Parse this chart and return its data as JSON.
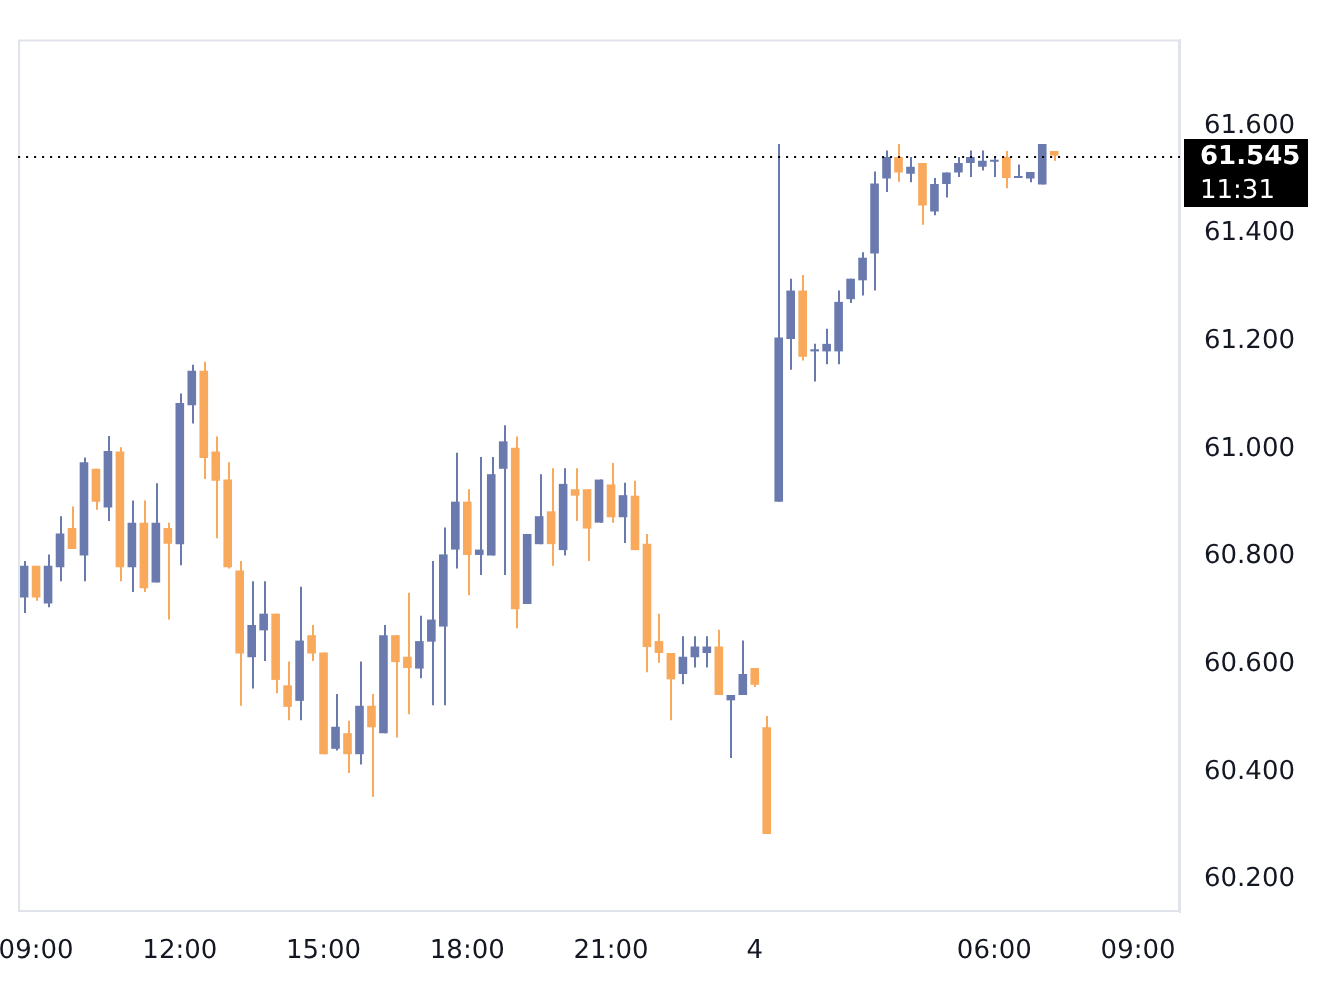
{
  "chart_data": {
    "type": "candlestick",
    "categories": [
      null,
      "09:00",
      null,
      null,
      null,
      null,
      null,
      null,
      null,
      null,
      null,
      null,
      null,
      "12:00",
      null,
      null,
      null,
      null,
      null,
      null,
      null,
      null,
      null,
      null,
      null,
      "15:00",
      null,
      null,
      null,
      null,
      null,
      null,
      null,
      null,
      null,
      null,
      null,
      "18:00",
      null,
      null,
      null,
      null,
      null,
      null,
      null,
      null,
      null,
      null,
      null,
      "21:00",
      null,
      null,
      null,
      null,
      null,
      null,
      null,
      null,
      null,
      null,
      null,
      "4",
      null,
      null,
      null,
      null,
      null,
      null,
      null,
      null,
      null,
      null,
      null,
      null,
      null,
      null,
      null,
      null,
      null,
      null,
      null,
      "06:00",
      null,
      null,
      null,
      null,
      null,
      null,
      null,
      null,
      null,
      null,
      null,
      "09:00",
      null,
      null,
      null
    ],
    "ohlc": [
      [
        60.724,
        60.792,
        60.695,
        60.783
      ],
      [
        60.783,
        60.783,
        60.718,
        60.724
      ],
      [
        60.713,
        60.804,
        60.706,
        60.783
      ],
      [
        60.78,
        60.875,
        60.754,
        60.843
      ],
      [
        60.853,
        60.893,
        60.814,
        60.814
      ],
      [
        60.802,
        60.984,
        60.754,
        60.975
      ],
      [
        60.963,
        60.963,
        60.887,
        60.902
      ],
      [
        60.891,
        61.024,
        60.866,
        60.996
      ],
      [
        60.995,
        61.003,
        60.754,
        60.78
      ],
      [
        60.78,
        60.904,
        60.734,
        60.863
      ],
      [
        60.863,
        60.904,
        60.734,
        60.741
      ],
      [
        60.752,
        60.936,
        60.752,
        60.863
      ],
      [
        60.853,
        60.863,
        60.683,
        60.824
      ],
      [
        60.823,
        61.103,
        60.784,
        61.085
      ],
      [
        61.081,
        61.156,
        61.047,
        61.145
      ],
      [
        61.145,
        61.162,
        60.944,
        60.983
      ],
      [
        60.995,
        61.023,
        60.834,
        60.941
      ],
      [
        60.943,
        60.975,
        60.778,
        60.78
      ],
      [
        60.774,
        60.792,
        60.523,
        60.62
      ],
      [
        60.613,
        60.754,
        60.555,
        60.673
      ],
      [
        60.663,
        60.754,
        60.606,
        60.694
      ],
      [
        60.694,
        60.694,
        60.546,
        60.571
      ],
      [
        60.561,
        60.605,
        60.496,
        60.521
      ],
      [
        60.532,
        60.744,
        60.496,
        60.644
      ],
      [
        60.654,
        60.673,
        60.606,
        60.62
      ],
      [
        60.622,
        60.622,
        60.433,
        60.433
      ],
      [
        60.443,
        60.545,
        60.44,
        60.484
      ],
      [
        60.472,
        60.495,
        60.398,
        60.433
      ],
      [
        60.433,
        60.605,
        60.414,
        60.523
      ],
      [
        60.523,
        60.545,
        60.354,
        60.483
      ],
      [
        60.472,
        60.673,
        60.472,
        60.654
      ],
      [
        60.654,
        60.654,
        60.464,
        60.604
      ],
      [
        60.614,
        60.733,
        60.507,
        60.593
      ],
      [
        60.592,
        60.69,
        60.574,
        60.643
      ],
      [
        60.642,
        60.792,
        60.524,
        60.683
      ],
      [
        60.67,
        60.854,
        60.524,
        60.804
      ],
      [
        60.813,
        60.993,
        60.778,
        60.902
      ],
      [
        60.902,
        60.925,
        60.728,
        60.803
      ],
      [
        60.803,
        60.985,
        60.766,
        60.813
      ],
      [
        60.802,
        60.985,
        60.802,
        60.953
      ],
      [
        60.963,
        61.044,
        60.766,
        61.014
      ],
      [
        61.002,
        61.023,
        60.667,
        60.702
      ],
      [
        60.712,
        60.842,
        60.712,
        60.842
      ],
      [
        60.823,
        60.953,
        60.823,
        60.875
      ],
      [
        60.884,
        60.964,
        60.783,
        60.823
      ],
      [
        60.812,
        60.964,
        60.802,
        60.935
      ],
      [
        60.925,
        60.964,
        60.866,
        60.913
      ],
      [
        60.925,
        60.925,
        60.792,
        60.852
      ],
      [
        60.863,
        60.943,
        60.863,
        60.943
      ],
      [
        60.934,
        60.974,
        60.863,
        60.873
      ],
      [
        60.873,
        60.937,
        60.825,
        60.914
      ],
      [
        60.913,
        60.941,
        60.812,
        60.812
      ],
      [
        60.824,
        60.842,
        60.585,
        60.632
      ],
      [
        60.643,
        60.694,
        60.603,
        60.621
      ],
      [
        60.621,
        60.621,
        60.496,
        60.572
      ],
      [
        60.582,
        60.652,
        60.563,
        60.614
      ],
      [
        60.613,
        60.652,
        60.594,
        60.633
      ],
      [
        60.621,
        60.652,
        60.594,
        60.633
      ],
      [
        60.633,
        60.664,
        60.543,
        60.543
      ],
      [
        60.533,
        60.543,
        60.426,
        60.543
      ],
      [
        60.543,
        60.644,
        60.543,
        60.582
      ],
      [
        60.593,
        60.593,
        60.558,
        60.562
      ],
      [
        60.483,
        60.504,
        60.285,
        60.285
      ],
      [
        60.902,
        61.566,
        60.902,
        61.207
      ],
      [
        61.204,
        61.316,
        61.147,
        61.294
      ],
      [
        61.294,
        61.323,
        61.164,
        61.171
      ],
      [
        61.181,
        61.195,
        61.125,
        61.185
      ],
      [
        61.181,
        61.223,
        61.157,
        61.195
      ],
      [
        61.181,
        61.294,
        61.157,
        61.273
      ],
      [
        61.278,
        61.316,
        61.271,
        61.316
      ],
      [
        61.313,
        61.365,
        61.285,
        61.355
      ],
      [
        61.363,
        61.515,
        61.294,
        61.493
      ],
      [
        61.502,
        61.554,
        61.477,
        61.542
      ],
      [
        61.542,
        61.566,
        61.496,
        61.513
      ],
      [
        61.511,
        61.542,
        61.495,
        61.524
      ],
      [
        61.531,
        61.531,
        61.416,
        61.452
      ],
      [
        61.441,
        61.503,
        61.434,
        61.492
      ],
      [
        61.492,
        61.513,
        61.467,
        61.513
      ],
      [
        61.513,
        61.542,
        61.505,
        61.531
      ],
      [
        61.531,
        61.554,
        61.505,
        61.542
      ],
      [
        61.524,
        61.554,
        61.517,
        61.535
      ],
      [
        61.533,
        61.543,
        61.505,
        61.535
      ],
      [
        61.542,
        61.553,
        61.484,
        61.503
      ],
      [
        61.503,
        61.528,
        61.503,
        61.506
      ],
      [
        61.502,
        61.514,
        61.495,
        61.514
      ],
      [
        61.491,
        61.566,
        61.491,
        61.566
      ],
      [
        61.553,
        61.553,
        61.535,
        61.545
      ],
      null,
      null,
      null,
      null,
      null,
      null,
      null,
      null,
      null,
      null
    ],
    "colors": [
      "#6a7aae",
      "#f8a95c",
      "#6a7aae",
      "#6a7aae",
      "#f8a95c",
      "#6a7aae",
      "#f8a95c",
      "#6a7aae",
      "#f8a95c",
      "#6a7aae",
      "#f8a95c",
      "#6a7aae",
      "#f8a95c",
      "#6a7aae",
      "#6a7aae",
      "#f8a95c",
      "#f8a95c",
      "#f8a95c",
      "#f8a95c",
      "#6a7aae",
      "#6a7aae",
      "#f8a95c",
      "#f8a95c",
      "#6a7aae",
      "#f8a95c",
      "#f8a95c",
      "#6a7aae",
      "#f8a95c",
      "#6a7aae",
      "#f8a95c",
      "#6a7aae",
      "#f8a95c",
      "#f8a95c",
      "#6a7aae",
      "#6a7aae",
      "#6a7aae",
      "#6a7aae",
      "#f8a95c",
      "#6a7aae",
      "#6a7aae",
      "#6a7aae",
      "#f8a95c",
      "#6a7aae",
      "#6a7aae",
      "#f8a95c",
      "#6a7aae",
      "#f8a95c",
      "#f8a95c",
      "#6a7aae",
      "#f8a95c",
      "#6a7aae",
      "#f8a95c",
      "#f8a95c",
      "#f8a95c",
      "#f8a95c",
      "#6a7aae",
      "#6a7aae",
      "#6a7aae",
      "#f8a95c",
      "#6a7aae",
      "#6a7aae",
      "#f8a95c",
      "#f8a95c",
      "#6a7aae",
      "#6a7aae",
      "#f8a95c",
      "#6a7aae",
      "#6a7aae",
      "#6a7aae",
      "#6a7aae",
      "#6a7aae",
      "#6a7aae",
      "#6a7aae",
      "#f8a95c",
      "#6a7aae",
      "#f8a95c",
      "#6a7aae",
      "#6a7aae",
      "#6a7aae",
      "#6a7aae",
      "#6a7aae",
      "#6a7aae",
      "#f8a95c",
      "#6a7aae",
      "#6a7aae",
      "#6a7aae",
      "#f8a95c",
      null,
      null,
      null,
      null,
      null,
      null,
      null,
      null,
      null,
      null
    ],
    "ylim": [
      60.14,
      61.76
    ],
    "yticks": [
      {
        "value": 60.2,
        "label": "60.200"
      },
      {
        "value": 60.4,
        "label": "60.400"
      },
      {
        "value": 60.6,
        "label": "60.600"
      },
      {
        "value": 60.8,
        "label": "60.800"
      },
      {
        "value": 61.0,
        "label": "61.000"
      },
      {
        "value": 61.2,
        "label": "61.200"
      },
      {
        "value": 61.4,
        "label": "61.400"
      },
      {
        "value": 61.6,
        "label": "61.600"
      }
    ],
    "ref_lines": [
      {
        "axis": "y",
        "value": 61.545,
        "label": "61.545",
        "color": "#000000",
        "line_style": "dotted"
      }
    ],
    "annotations": [
      "11:31"
    ],
    "grid": false,
    "legend": false
  }
}
